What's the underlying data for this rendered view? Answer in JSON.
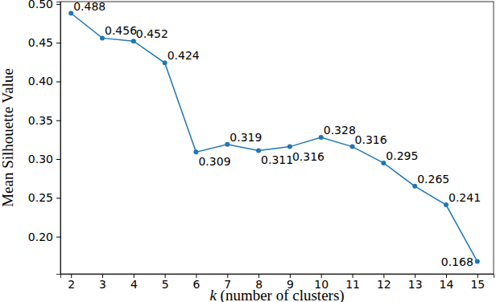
{
  "chart_data": {
    "type": "line",
    "x_label": "k (number of clusters)",
    "y_label": "Mean Silhouette Value",
    "x": [
      2,
      3,
      4,
      5,
      6,
      7,
      8,
      9,
      10,
      11,
      12,
      13,
      14,
      15
    ],
    "values": [
      0.488,
      0.456,
      0.452,
      0.424,
      0.309,
      0.319,
      0.311,
      0.316,
      0.328,
      0.316,
      0.295,
      0.265,
      0.241,
      0.168
    ],
    "color": "#1f77b4",
    "marker": "circle",
    "line_style": "solid",
    "data_labels": true,
    "grid": false,
    "xlim": [
      1.66,
      15.52
    ],
    "xticks": [
      2,
      3,
      4,
      5,
      6,
      7,
      8,
      9,
      10,
      11,
      12,
      13,
      14,
      15
    ],
    "ylim": [
      0.152,
      0.503
    ],
    "yticks": [
      {
        "value": 0.2,
        "label": "0.20"
      },
      {
        "value": 0.25,
        "label": "0.25"
      },
      {
        "value": 0.3,
        "label": "0.30"
      },
      {
        "value": 0.35,
        "label": "0.35"
      },
      {
        "value": 0.4,
        "label": "0.40"
      },
      {
        "value": 0.45,
        "label": "0.45"
      },
      {
        "value": 0.5,
        "label": "0.50"
      }
    ]
  }
}
